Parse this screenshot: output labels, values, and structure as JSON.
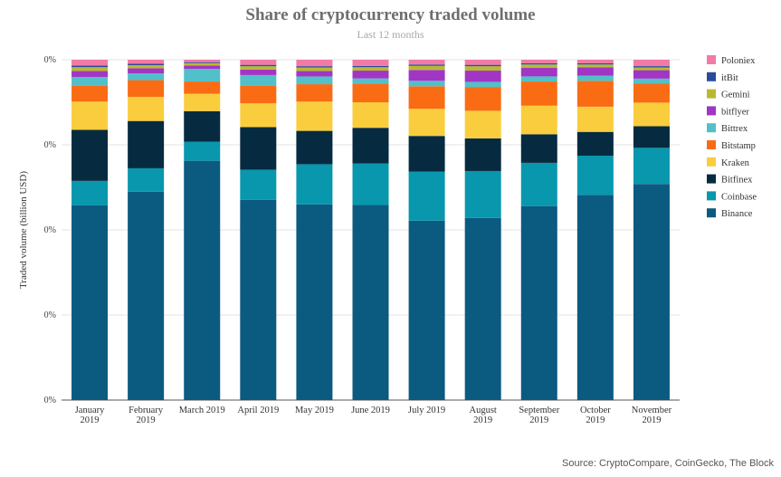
{
  "chart_data": {
    "type": "bar",
    "stacked": true,
    "title": "Share of cryptocurrency traded volume",
    "subtitle": "Last 12 months",
    "xlabel": "",
    "ylabel": "Traded volume (billion USD)",
    "yticks": [
      "0%",
      "0%",
      "0%",
      "0%",
      "0%"
    ],
    "ylim": [
      0,
      100
    ],
    "grid": true,
    "legend_position": "right",
    "source": "Source: CryptoCompare, CoinGecko, The Block",
    "categories": [
      [
        "January",
        "2019"
      ],
      [
        "February",
        "2019"
      ],
      [
        "March 2019"
      ],
      [
        "April 2019"
      ],
      [
        "May 2019"
      ],
      [
        "June 2019"
      ],
      [
        "July 2019"
      ],
      [
        "August",
        "2019"
      ],
      [
        "September",
        "2019"
      ],
      [
        "October",
        "2019"
      ],
      [
        "November",
        "2019"
      ]
    ],
    "series": [
      {
        "name": "Binance",
        "color": "#0b5a80",
        "values": [
          57.2,
          61.2,
          70.3,
          58.8,
          57.5,
          57.3,
          52.7,
          53.5,
          57.0,
          60.3,
          64.0
        ]
      },
      {
        "name": "Coinbase",
        "color": "#0897ad",
        "values": [
          7.2,
          6.9,
          5.6,
          8.9,
          11.8,
          12.2,
          14.4,
          13.8,
          12.7,
          11.5,
          10.7
        ]
      },
      {
        "name": "Bitfinex",
        "color": "#062b40",
        "values": [
          15.0,
          13.9,
          9.0,
          12.5,
          9.8,
          10.5,
          10.5,
          9.6,
          8.4,
          7.0,
          6.4
        ]
      },
      {
        "name": "Kraken",
        "color": "#f9cd3d",
        "values": [
          8.3,
          7.1,
          5.1,
          7.0,
          8.6,
          7.5,
          8.0,
          8.1,
          8.4,
          7.4,
          7.0
        ]
      },
      {
        "name": "Bitstamp",
        "color": "#f96c14",
        "values": [
          4.6,
          4.9,
          3.6,
          5.1,
          5.1,
          5.5,
          6.6,
          7.0,
          7.1,
          7.6,
          5.6
        ]
      },
      {
        "name": "Bittrex",
        "color": "#52c0c9",
        "values": [
          2.6,
          2.0,
          3.7,
          3.2,
          2.3,
          1.5,
          1.6,
          1.5,
          1.5,
          1.5,
          1.5
        ]
      },
      {
        "name": "bitflyer",
        "color": "#a236c4",
        "values": [
          1.8,
          1.5,
          1.0,
          1.6,
          1.6,
          2.3,
          3.2,
          3.3,
          2.5,
          2.5,
          2.5
        ]
      },
      {
        "name": "Gemini",
        "color": "#b9b834",
        "values": [
          1.1,
          0.9,
          0.7,
          1.0,
          1.0,
          1.0,
          1.2,
          1.3,
          1.0,
          0.8,
          0.8
        ]
      },
      {
        "name": "itBit",
        "color": "#2a4c9e",
        "values": [
          0.5,
          0.4,
          0.3,
          0.4,
          0.4,
          0.4,
          0.4,
          0.4,
          0.4,
          0.4,
          0.4
        ]
      },
      {
        "name": "Poloniex",
        "color": "#f27aa6",
        "values": [
          1.7,
          1.2,
          0.7,
          1.5,
          1.9,
          1.8,
          1.4,
          1.5,
          1.0,
          1.0,
          1.9
        ]
      }
    ]
  }
}
